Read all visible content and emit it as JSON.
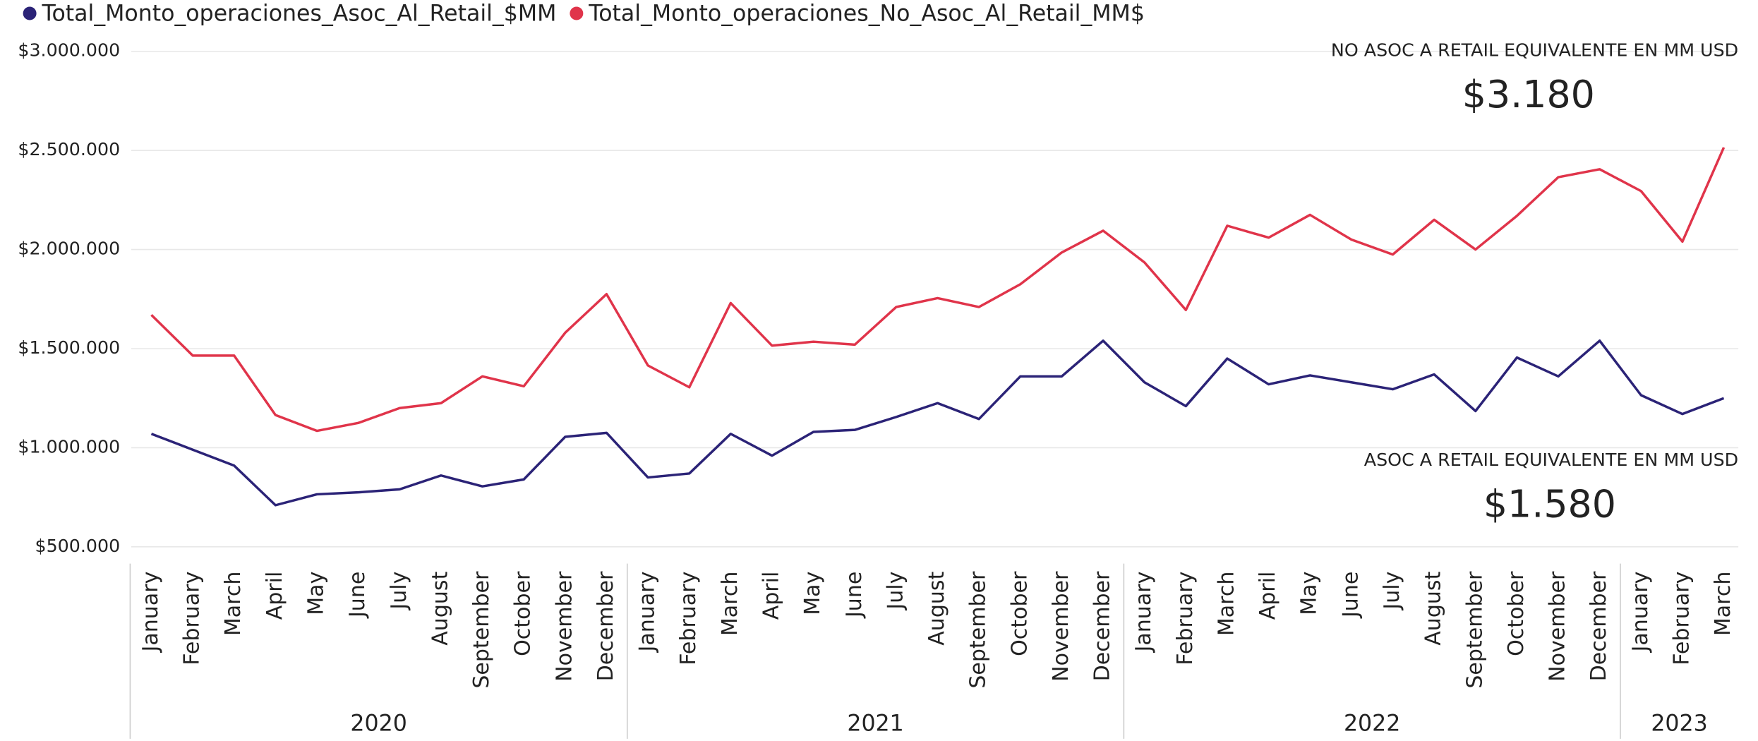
{
  "chart_data": {
    "type": "line",
    "categories": [
      "January",
      "February",
      "March",
      "April",
      "May",
      "June",
      "July",
      "August",
      "September",
      "October",
      "November",
      "December",
      "January",
      "February",
      "March",
      "April",
      "May",
      "June",
      "July",
      "August",
      "September",
      "October",
      "November",
      "December",
      "January",
      "February",
      "March",
      "April",
      "May",
      "June",
      "July",
      "August",
      "September",
      "October",
      "November",
      "December",
      "January",
      "February",
      "March"
    ],
    "groups": [
      {
        "label": "2020",
        "span": 12
      },
      {
        "label": "2021",
        "span": 12
      },
      {
        "label": "2022",
        "span": 12
      },
      {
        "label": "2023",
        "span": 3
      }
    ],
    "series": [
      {
        "name": "Total_Monto_operaciones_Asoc_Al_Retail_$MM",
        "color": "#2b2377",
        "values": [
          1070000,
          990000,
          910000,
          710000,
          765000,
          775000,
          790000,
          860000,
          805000,
          840000,
          1055000,
          1075000,
          850000,
          870000,
          1070000,
          960000,
          1080000,
          1090000,
          1155000,
          1225000,
          1145000,
          1360000,
          1360000,
          1540000,
          1330000,
          1210000,
          1450000,
          1320000,
          1365000,
          1330000,
          1295000,
          1370000,
          1185000,
          1455000,
          1360000,
          1540000,
          1265000,
          1170000,
          1250000
        ]
      },
      {
        "name": "Total_Monto_operaciones_No_Asoc_Al_Retail_MM$",
        "color": "#e0344a",
        "values": [
          1670000,
          1465000,
          1465000,
          1165000,
          1085000,
          1125000,
          1200000,
          1225000,
          1360000,
          1310000,
          1580000,
          1775000,
          1415000,
          1305000,
          1730000,
          1515000,
          1535000,
          1520000,
          1710000,
          1755000,
          1710000,
          1825000,
          1985000,
          2095000,
          1935000,
          1695000,
          2120000,
          2060000,
          2175000,
          2050000,
          1975000,
          2150000,
          2000000,
          2170000,
          2365000,
          2405000,
          2295000,
          2040000,
          2515000
        ]
      }
    ],
    "ylim": [
      500000,
      3000000
    ],
    "yticks": [
      {
        "value": 500000,
        "label": "$500.000"
      },
      {
        "value": 1000000,
        "label": "$1.000.000"
      },
      {
        "value": 1500000,
        "label": "$1.500.000"
      },
      {
        "value": 2000000,
        "label": "$2.000.000"
      },
      {
        "value": 2500000,
        "label": "$2.500.000"
      },
      {
        "value": 3000000,
        "label": "$3.000.000"
      }
    ],
    "grid": true,
    "cards": [
      {
        "label": "NO ASOC A RETAIL EQUIVALENTE EN MM USD",
        "value": "$3.180"
      },
      {
        "label": "ASOC A RETAIL EQUIVALENTE EN MM USD",
        "value": "$1.580"
      }
    ]
  }
}
